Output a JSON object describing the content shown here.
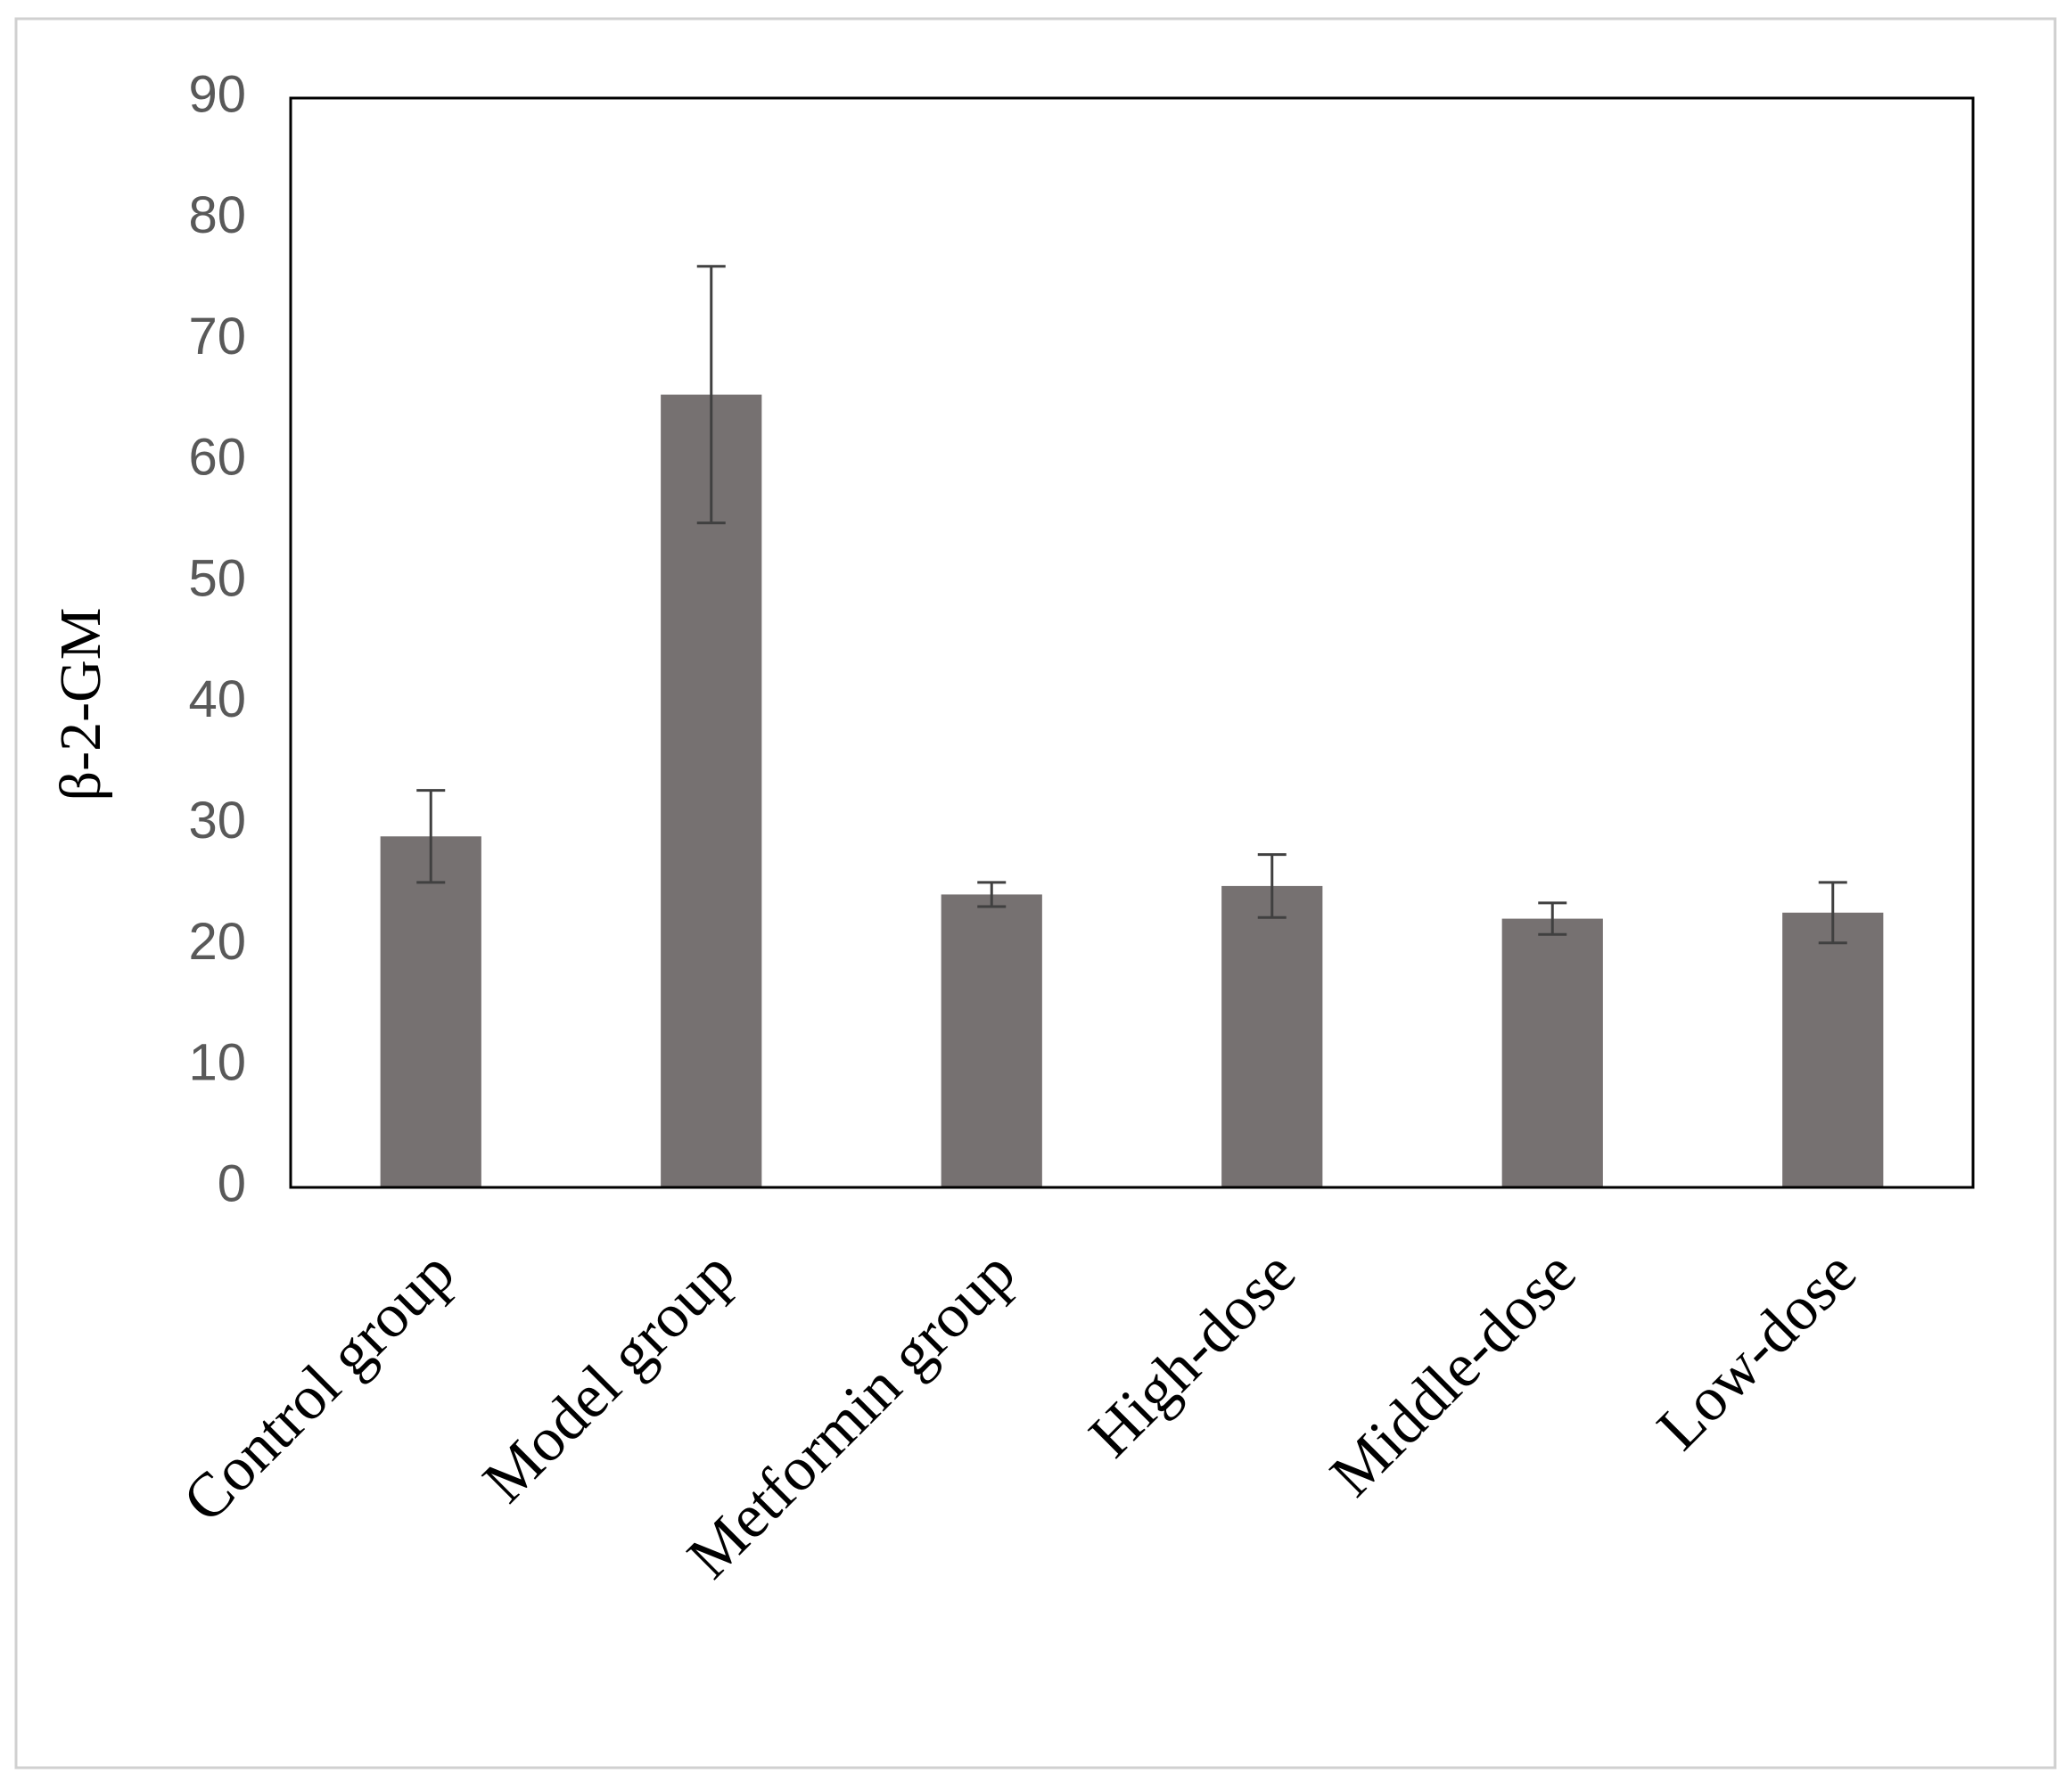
{
  "chart_data": {
    "type": "bar",
    "y_label": "β-2-GM",
    "categories": [
      "Control group",
      "Model group",
      "Metformin group",
      "High-dose",
      "Middle-dose",
      "Low-dose"
    ],
    "values": [
      29,
      65.5,
      24.2,
      24.9,
      22.2,
      22.7
    ],
    "errors": [
      3.8,
      10.6,
      1.0,
      2.6,
      1.3,
      2.5
    ],
    "color": "#767171",
    "error_color": "#404040",
    "ylim": [
      0,
      90
    ],
    "yticks": [
      0,
      10,
      20,
      30,
      40,
      50,
      60,
      70,
      80,
      90
    ],
    "grid": false
  }
}
